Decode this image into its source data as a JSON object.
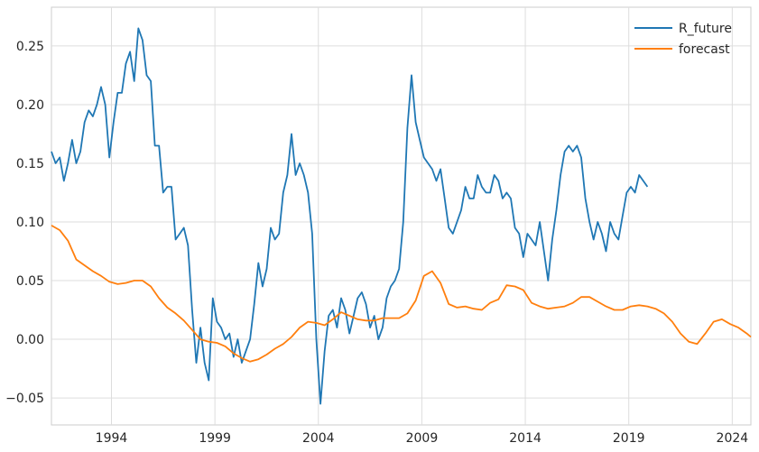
{
  "chart_data": {
    "type": "line",
    "title": "",
    "xlabel": "",
    "ylabel": "",
    "xlim": [
      1991.1,
      2024.9
    ],
    "ylim": [
      -0.073,
      0.283
    ],
    "grid": true,
    "legend_position": "top-right",
    "x_ticks": [
      1994,
      1999,
      2004,
      2009,
      2014,
      2019,
      2024
    ],
    "x_tick_labels": [
      "1994",
      "1999",
      "2004",
      "2009",
      "2014",
      "2019",
      "2024"
    ],
    "y_ticks": [
      -0.05,
      0.0,
      0.05,
      0.1,
      0.15,
      0.2,
      0.25
    ],
    "y_tick_labels": [
      "−0.05",
      "0.00",
      "0.05",
      "0.10",
      "0.15",
      "0.20",
      "0.25"
    ],
    "series": [
      {
        "name": "R_future",
        "color": "#1f77b4",
        "x": [
          1991.1,
          1991.3,
          1991.5,
          1991.7,
          1991.9,
          1992.1,
          1992.3,
          1992.5,
          1992.7,
          1992.9,
          1993.1,
          1993.3,
          1993.5,
          1993.7,
          1993.9,
          1994.1,
          1994.3,
          1994.5,
          1994.7,
          1994.9,
          1995.1,
          1995.3,
          1995.5,
          1995.7,
          1995.9,
          1996.1,
          1996.3,
          1996.5,
          1996.7,
          1996.9,
          1997.1,
          1997.3,
          1997.5,
          1997.7,
          1997.9,
          1998.1,
          1998.3,
          1998.5,
          1998.7,
          1998.9,
          1999.1,
          1999.3,
          1999.5,
          1999.7,
          1999.9,
          2000.1,
          2000.3,
          2000.5,
          2000.7,
          2000.9,
          2001.1,
          2001.3,
          2001.5,
          2001.7,
          2001.9,
          2002.1,
          2002.3,
          2002.5,
          2002.7,
          2002.9,
          2003.1,
          2003.3,
          2003.5,
          2003.7,
          2003.9,
          2004.1,
          2004.3,
          2004.5,
          2004.7,
          2004.9,
          2005.1,
          2005.3,
          2005.5,
          2005.7,
          2005.9,
          2006.1,
          2006.3,
          2006.5,
          2006.7,
          2006.9,
          2007.1,
          2007.3,
          2007.5,
          2007.7,
          2007.9,
          2008.1,
          2008.3,
          2008.5,
          2008.7,
          2008.9,
          2009.1,
          2009.3,
          2009.5,
          2009.7,
          2009.9,
          2010.1,
          2010.3,
          2010.5,
          2010.7,
          2010.9,
          2011.1,
          2011.3,
          2011.5,
          2011.7,
          2011.9,
          2012.1,
          2012.3,
          2012.5,
          2012.7,
          2012.9,
          2013.1,
          2013.3,
          2013.5,
          2013.7,
          2013.9,
          2014.1,
          2014.3,
          2014.5,
          2014.7,
          2014.9,
          2015.1,
          2015.3,
          2015.5,
          2015.7,
          2015.9,
          2016.1,
          2016.3,
          2016.5,
          2016.7,
          2016.9,
          2017.1,
          2017.3,
          2017.5,
          2017.7,
          2017.9,
          2018.1,
          2018.3,
          2018.5,
          2018.7,
          2018.9,
          2019.1,
          2019.3,
          2019.5,
          2019.7,
          2019.9
        ],
        "values": [
          0.16,
          0.15,
          0.155,
          0.135,
          0.15,
          0.17,
          0.15,
          0.16,
          0.185,
          0.195,
          0.19,
          0.2,
          0.215,
          0.2,
          0.155,
          0.185,
          0.21,
          0.21,
          0.235,
          0.245,
          0.22,
          0.265,
          0.255,
          0.225,
          0.22,
          0.165,
          0.165,
          0.125,
          0.13,
          0.13,
          0.085,
          0.09,
          0.095,
          0.08,
          0.025,
          -0.02,
          0.01,
          -0.02,
          -0.035,
          0.035,
          0.015,
          0.01,
          0.0,
          0.005,
          -0.015,
          0.0,
          -0.02,
          -0.01,
          0.0,
          0.03,
          0.065,
          0.045,
          0.06,
          0.095,
          0.085,
          0.09,
          0.125,
          0.14,
          0.175,
          0.14,
          0.15,
          0.14,
          0.125,
          0.09,
          0.0,
          -0.055,
          -0.01,
          0.02,
          0.025,
          0.01,
          0.035,
          0.025,
          0.005,
          0.02,
          0.035,
          0.04,
          0.03,
          0.01,
          0.02,
          0.0,
          0.01,
          0.035,
          0.045,
          0.05,
          0.06,
          0.1,
          0.18,
          0.225,
          0.185,
          0.17,
          0.155,
          0.15,
          0.145,
          0.135,
          0.145,
          0.12,
          0.095,
          0.09,
          0.1,
          0.11,
          0.13,
          0.12,
          0.12,
          0.14,
          0.13,
          0.125,
          0.125,
          0.14,
          0.135,
          0.12,
          0.125,
          0.12,
          0.095,
          0.09,
          0.07,
          0.09,
          0.085,
          0.08,
          0.1,
          0.075,
          0.05,
          0.085,
          0.11,
          0.14,
          0.16,
          0.165,
          0.16,
          0.165,
          0.155,
          0.12,
          0.1,
          0.085,
          0.1,
          0.09,
          0.075,
          0.1,
          0.09,
          0.085,
          0.105,
          0.125,
          0.13,
          0.125,
          0.14,
          0.135,
          0.13
        ]
      },
      {
        "name": "forecast",
        "color": "#ff7f0e",
        "x": [
          1991.1,
          1991.5,
          1991.9,
          1992.3,
          1992.7,
          1993.1,
          1993.5,
          1993.9,
          1994.3,
          1994.7,
          1995.1,
          1995.5,
          1995.9,
          1996.3,
          1996.7,
          1997.1,
          1997.5,
          1997.9,
          1998.3,
          1998.7,
          1999.1,
          1999.5,
          1999.9,
          2000.3,
          2000.7,
          2001.1,
          2001.5,
          2001.9,
          2002.3,
          2002.7,
          2003.1,
          2003.5,
          2003.9,
          2004.3,
          2004.7,
          2005.1,
          2005.5,
          2005.9,
          2006.3,
          2006.7,
          2007.1,
          2007.5,
          2007.9,
          2008.3,
          2008.7,
          2009.1,
          2009.5,
          2009.9,
          2010.3,
          2010.7,
          2011.1,
          2011.5,
          2011.9,
          2012.3,
          2012.7,
          2013.1,
          2013.5,
          2013.9,
          2014.3,
          2014.7,
          2015.1,
          2015.5,
          2015.9,
          2016.3,
          2016.7,
          2017.1,
          2017.5,
          2017.9,
          2018.3,
          2018.7,
          2019.1,
          2019.5,
          2019.9,
          2020.3,
          2020.7,
          2021.1,
          2021.5,
          2021.9,
          2022.3,
          2022.7,
          2023.1,
          2023.5,
          2023.9,
          2024.3,
          2024.7,
          2024.9
        ],
        "values": [
          0.097,
          0.093,
          0.084,
          0.068,
          0.063,
          0.058,
          0.054,
          0.049,
          0.047,
          0.048,
          0.05,
          0.05,
          0.045,
          0.035,
          0.027,
          0.022,
          0.016,
          0.008,
          0.0,
          -0.002,
          -0.003,
          -0.006,
          -0.012,
          -0.016,
          -0.019,
          -0.017,
          -0.013,
          -0.008,
          -0.004,
          0.002,
          0.01,
          0.015,
          0.014,
          0.012,
          0.017,
          0.023,
          0.02,
          0.017,
          0.016,
          0.016,
          0.018,
          0.018,
          0.018,
          0.022,
          0.033,
          0.054,
          0.058,
          0.048,
          0.03,
          0.027,
          0.028,
          0.026,
          0.025,
          0.031,
          0.034,
          0.046,
          0.045,
          0.042,
          0.031,
          0.028,
          0.026,
          0.027,
          0.028,
          0.031,
          0.036,
          0.036,
          0.032,
          0.028,
          0.025,
          0.025,
          0.028,
          0.029,
          0.028,
          0.026,
          0.022,
          0.015,
          0.005,
          -0.002,
          -0.004,
          0.005,
          0.015,
          0.017,
          0.013,
          0.01,
          0.005,
          0.002
        ]
      }
    ]
  }
}
